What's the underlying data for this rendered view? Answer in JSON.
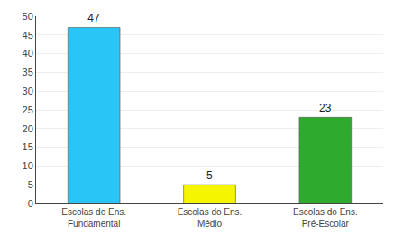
{
  "chart_data": {
    "type": "bar",
    "categories": [
      "Escolas do Ens.\nFundamental",
      "Escolas do Ens.\nMédio",
      "Escolas do Ens.\nPré-Escolar"
    ],
    "values": [
      47,
      5,
      23
    ],
    "colors": [
      "#29C5F6",
      "#F5F500",
      "#2EAA2E"
    ],
    "ylim": [
      0,
      50
    ],
    "yticks": [
      0,
      5,
      10,
      15,
      20,
      25,
      30,
      35,
      40,
      45,
      50
    ],
    "grid": true,
    "data_labels": true
  }
}
